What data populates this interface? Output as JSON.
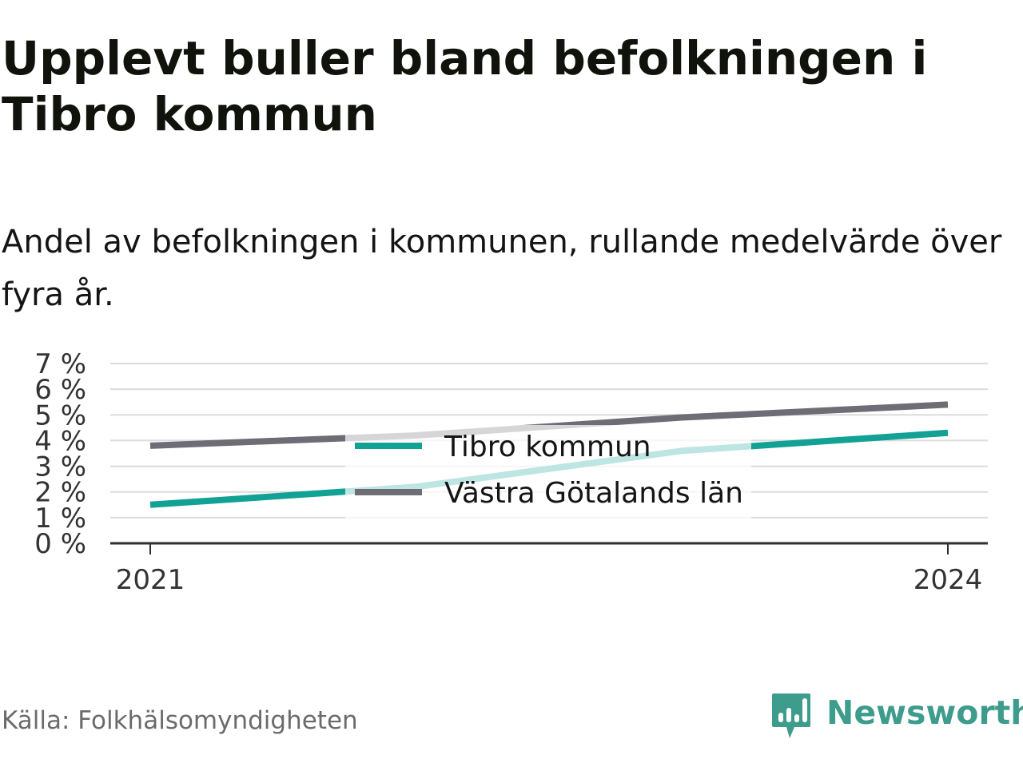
{
  "title": "Upplevt buller bland befolkningen i Tibro kommun",
  "subtitle": "Andel av befolkningen i kommunen, rullande medelvärde över fyra år.",
  "source": "Källa: Folkhälsomyndigheten",
  "brand": {
    "name": "Newsworthy",
    "icon": "newsworthy-logo-icon",
    "color": "#3e9c8c"
  },
  "chart_data": {
    "type": "line",
    "x": [
      2021,
      2022,
      2023,
      2024
    ],
    "xticks": [
      "2021",
      "2024"
    ],
    "yticks": [
      "0 %",
      "1 %",
      "2 %",
      "3 %",
      "4 %",
      "5 %",
      "6 %",
      "7 %"
    ],
    "ylim": [
      0,
      7
    ],
    "xlim": [
      2021,
      2024
    ],
    "grid": true,
    "legend_position": "center",
    "series": [
      {
        "name": "Tibro kommun",
        "color": "#12a195",
        "values": [
          1.5,
          2.2,
          3.6,
          4.3
        ]
      },
      {
        "name": "Västra Götalands län",
        "color": "#6e6d76",
        "values": [
          3.8,
          4.2,
          4.9,
          5.4
        ]
      }
    ]
  }
}
